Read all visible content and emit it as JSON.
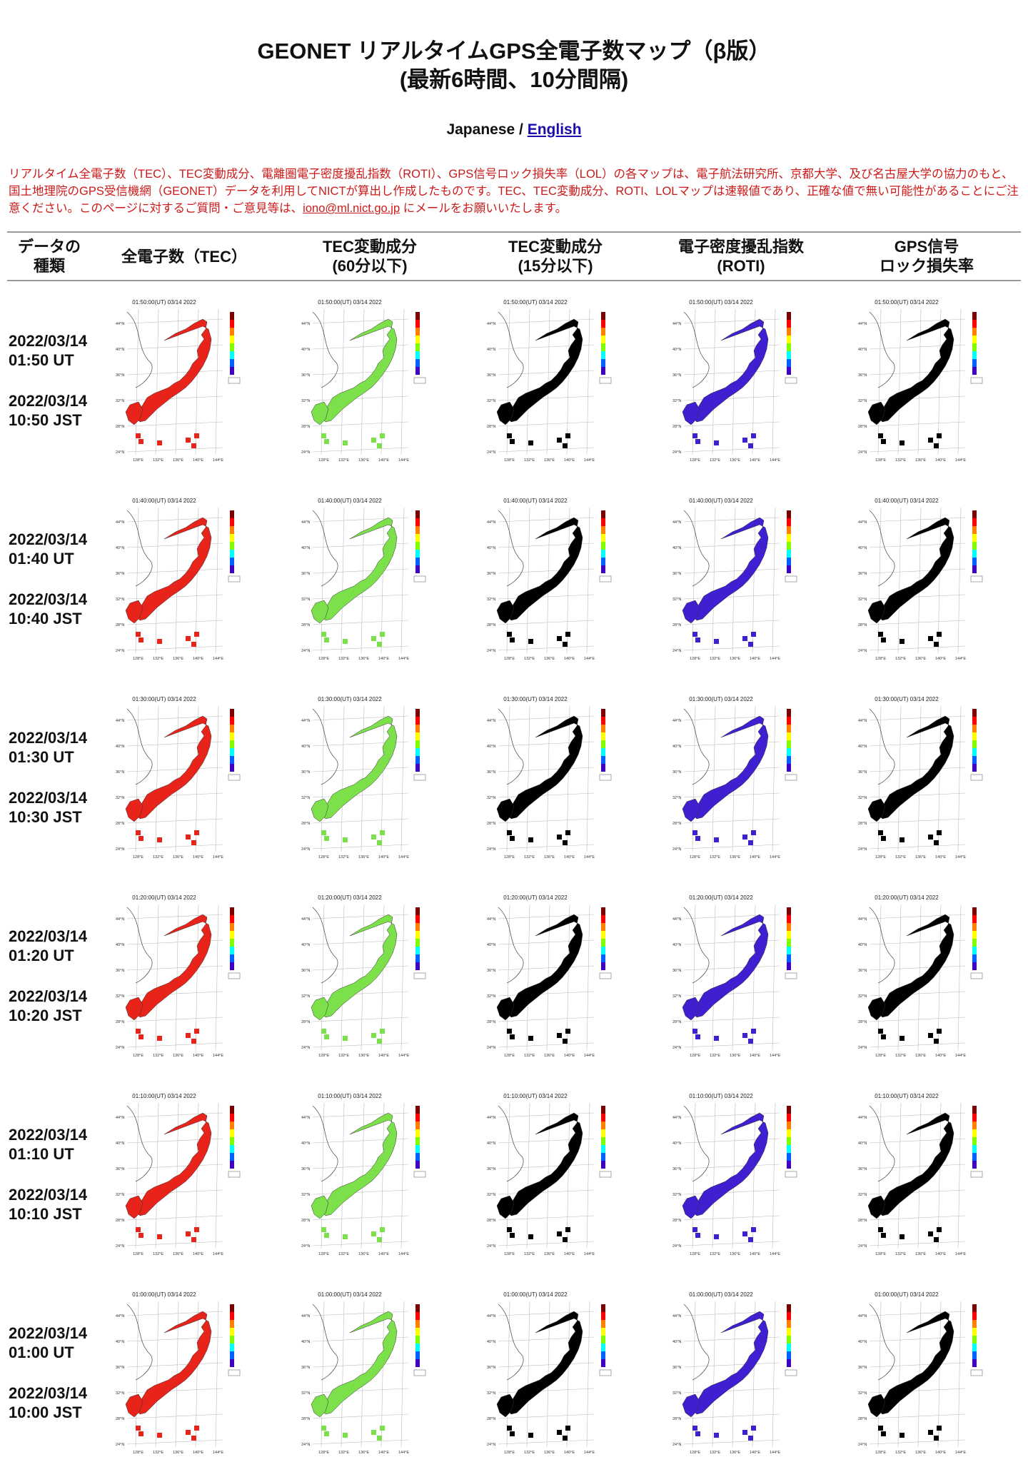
{
  "title_line1": "GEONET リアルタイムGPS全電子数マップ（β版）",
  "title_line2": "(最新6時間、10分間隔)",
  "lang": {
    "current": "Japanese",
    "separator": " / ",
    "link": "English"
  },
  "notice": {
    "text_before": "リアルタイム全電子数（TEC）、TEC変動成分、電離圏電子密度擾乱指数（ROTI）、GPS信号ロック損失率（LOL）の各マップは、電子航法研究所、京都大学、及び名古屋大学の協力のもと、国土地理院のGPS受信機網（GEONET）データを利用してNICTが算出し作成したものです。TEC、TEC変動成分、ROTI、LOLマップは速報値であり、正確な値で無い可能性があることにご注意ください。このページに対するご質問・ご意見等は、",
    "email": "iono@ml.nict.go.jp",
    "text_after": " にメールをお願いいたします。"
  },
  "headers": {
    "type": "データの\n種類",
    "tec": "全電子数（TEC）",
    "dtec60": "TEC変動成分\n(60分以下)",
    "dtec15": "TEC変動成分\n(15分以下)",
    "roti": "電子密度擾乱指数\n(ROTI)",
    "lol": "GPS信号\nロック損失率"
  },
  "rows": [
    {
      "ut_date": "2022/03/14",
      "ut_time": "01:50 UT",
      "jst_date": "2022/03/14",
      "jst_time": "10:50 JST",
      "map_title": "01:50:00(UT) 03/14 2022"
    },
    {
      "ut_date": "2022/03/14",
      "ut_time": "01:40 UT",
      "jst_date": "2022/03/14",
      "jst_time": "10:40 JST",
      "map_title": "01:40:00(UT) 03/14 2022"
    },
    {
      "ut_date": "2022/03/14",
      "ut_time": "01:30 UT",
      "jst_date": "2022/03/14",
      "jst_time": "10:30 JST",
      "map_title": "01:30:00(UT) 03/14 2022"
    },
    {
      "ut_date": "2022/03/14",
      "ut_time": "01:20 UT",
      "jst_date": "2022/03/14",
      "jst_time": "10:20 JST",
      "map_title": "01:20:00(UT) 03/14 2022"
    },
    {
      "ut_date": "2022/03/14",
      "ut_time": "01:10 UT",
      "jst_date": "2022/03/14",
      "jst_time": "10:10 JST",
      "map_title": "01:10:00(UT) 03/14 2022"
    },
    {
      "ut_date": "2022/03/14",
      "ut_time": "01:00 UT",
      "jst_date": "2022/03/14",
      "jst_time": "10:00 JST",
      "map_title": "01:00:00(UT) 03/14 2022"
    }
  ],
  "map_axes": {
    "lat_labels": [
      "44°N",
      "40°N",
      "36°N",
      "32°N",
      "28°N",
      "24°N"
    ],
    "lon_labels": [
      "128°E",
      "132°E",
      "136°E",
      "140°E",
      "144°E"
    ]
  },
  "map_colors": {
    "tec": "#e8231a",
    "dtec60": "#7be04a",
    "dtec15": "#000000",
    "roti": "#3f1fd0",
    "lol": "#000000",
    "colorbar": [
      "#7a0000",
      "#ff0000",
      "#ff8000",
      "#ffff00",
      "#80ff00",
      "#00ffff",
      "#0060ff",
      "#4000c0"
    ]
  }
}
